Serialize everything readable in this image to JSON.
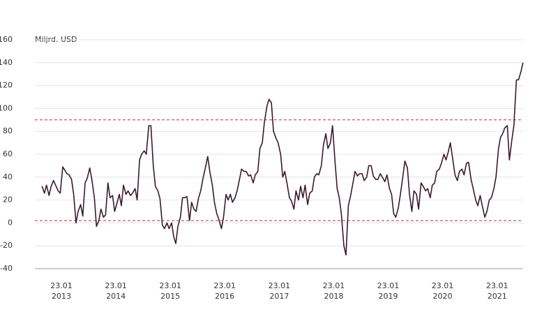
{
  "chart_data": {
    "type": "line",
    "y_label": "Miljrd. USD",
    "xlim": [
      "2012-07-29",
      "2021-07-16"
    ],
    "xticks": [
      {
        "value": "2013-01-23",
        "label": "23.01 2013"
      },
      {
        "value": "2014-01-23",
        "label": "23.01 2014"
      },
      {
        "value": "2015-01-23",
        "label": "23.01 2015"
      },
      {
        "value": "2016-01-23",
        "label": "23.01 2016"
      },
      {
        "value": "2017-01-23",
        "label": "23.01 2017"
      },
      {
        "value": "2018-01-23",
        "label": "23.01 2018"
      },
      {
        "value": "2019-01-23",
        "label": "23.01 2019"
      },
      {
        "value": "2020-01-23",
        "label": "23.01 2020"
      },
      {
        "value": "2021-01-23",
        "label": "23.01 2021"
      }
    ],
    "ylim": [
      -40,
      160
    ],
    "yticks": [
      -40,
      -20,
      0,
      20,
      40,
      60,
      80,
      100,
      120,
      140,
      160
    ],
    "grid": true,
    "hlines": [
      {
        "value": 90,
        "color": "#b03048"
      },
      {
        "value": 2,
        "color": "#b03048"
      }
    ],
    "x": [
      "2012-09-15",
      "2012-10-01",
      "2012-10-15",
      "2012-11-01",
      "2012-11-15",
      "2012-12-01",
      "2012-12-15",
      "2013-01-01",
      "2013-01-15",
      "2013-02-01",
      "2013-02-15",
      "2013-03-01",
      "2013-03-15",
      "2013-04-01",
      "2013-04-15",
      "2013-05-01",
      "2013-05-15",
      "2013-06-01",
      "2013-06-15",
      "2013-07-01",
      "2013-07-15",
      "2013-08-01",
      "2013-08-15",
      "2013-09-01",
      "2013-09-15",
      "2013-10-01",
      "2013-10-15",
      "2013-11-01",
      "2013-11-15",
      "2013-12-01",
      "2013-12-15",
      "2014-01-01",
      "2014-01-15",
      "2014-02-01",
      "2014-02-15",
      "2014-03-01",
      "2014-03-15",
      "2014-04-01",
      "2014-04-15",
      "2014-05-01",
      "2014-05-15",
      "2014-06-01",
      "2014-06-15",
      "2014-07-01",
      "2014-07-15",
      "2014-08-01",
      "2014-08-15",
      "2014-09-01",
      "2014-09-15",
      "2014-10-01",
      "2014-10-15",
      "2014-11-01",
      "2014-11-15",
      "2014-12-01",
      "2014-12-15",
      "2015-01-01",
      "2015-01-15",
      "2015-02-01",
      "2015-02-15",
      "2015-03-01",
      "2015-03-15",
      "2015-04-01",
      "2015-04-15",
      "2015-05-01",
      "2015-05-15",
      "2015-06-01",
      "2015-06-15",
      "2015-07-01",
      "2015-07-15",
      "2015-08-01",
      "2015-08-15",
      "2015-09-01",
      "2015-09-15",
      "2015-10-01",
      "2015-10-15",
      "2015-11-01",
      "2015-11-15",
      "2015-12-01",
      "2015-12-15",
      "2016-01-01",
      "2016-01-15",
      "2016-02-01",
      "2016-02-15",
      "2016-03-01",
      "2016-03-15",
      "2016-04-01",
      "2016-04-15",
      "2016-05-01",
      "2016-05-15",
      "2016-06-01",
      "2016-06-15",
      "2016-07-01",
      "2016-07-15",
      "2016-08-01",
      "2016-08-15",
      "2016-09-01",
      "2016-09-15",
      "2016-10-01",
      "2016-10-15",
      "2016-11-01",
      "2016-11-15",
      "2016-12-01",
      "2016-12-15",
      "2017-01-01",
      "2017-01-15",
      "2017-02-01",
      "2017-02-15",
      "2017-03-01",
      "2017-03-15",
      "2017-04-01",
      "2017-04-15",
      "2017-05-01",
      "2017-05-15",
      "2017-06-01",
      "2017-06-15",
      "2017-07-01",
      "2017-07-15",
      "2017-08-01",
      "2017-08-15",
      "2017-09-01",
      "2017-09-15",
      "2017-10-01",
      "2017-10-15",
      "2017-11-01",
      "2017-11-15",
      "2017-12-01",
      "2017-12-15",
      "2018-01-01",
      "2018-01-15",
      "2018-02-01",
      "2018-02-15",
      "2018-03-01",
      "2018-03-15",
      "2018-04-01",
      "2018-04-15",
      "2018-05-01",
      "2018-05-15",
      "2018-06-01",
      "2018-06-15",
      "2018-07-01",
      "2018-07-15",
      "2018-08-01",
      "2018-08-15",
      "2018-09-01",
      "2018-09-15",
      "2018-10-01",
      "2018-10-15",
      "2018-11-01",
      "2018-11-15",
      "2018-12-01",
      "2018-12-15",
      "2019-01-01",
      "2019-01-15",
      "2019-02-01",
      "2019-02-15",
      "2019-03-01",
      "2019-03-15",
      "2019-04-01",
      "2019-04-15",
      "2019-05-01",
      "2019-05-15",
      "2019-06-01",
      "2019-06-15",
      "2019-07-01",
      "2019-07-15",
      "2019-08-01",
      "2019-08-15",
      "2019-09-01",
      "2019-09-15",
      "2019-10-01",
      "2019-10-15",
      "2019-11-01",
      "2019-11-15",
      "2019-12-01",
      "2019-12-15",
      "2020-01-01",
      "2020-01-15",
      "2020-02-01",
      "2020-02-15",
      "2020-03-01",
      "2020-03-15",
      "2020-04-01",
      "2020-04-15",
      "2020-05-01",
      "2020-05-15",
      "2020-06-01",
      "2020-06-15",
      "2020-07-01",
      "2020-07-15",
      "2020-08-01",
      "2020-08-15",
      "2020-09-01",
      "2020-09-15",
      "2020-10-01",
      "2020-10-15",
      "2020-11-01",
      "2020-11-15",
      "2020-12-01",
      "2020-12-15",
      "2021-01-01",
      "2021-01-15",
      "2021-02-01",
      "2021-02-15",
      "2021-03-01",
      "2021-03-15",
      "2021-04-01",
      "2021-04-15",
      "2021-05-01",
      "2021-05-15",
      "2021-06-01",
      "2021-06-15",
      "2021-07-01",
      "2021-07-15"
    ],
    "series": [
      {
        "color": "#3a1a2e",
        "values": [
          32,
          26,
          33,
          24,
          32,
          37,
          33,
          28,
          26,
          49,
          46,
          43,
          42,
          38,
          25,
          0,
          10,
          16,
          6,
          35,
          39,
          48,
          38,
          22,
          -3,
          2,
          12,
          5,
          7,
          35,
          22,
          24,
          10,
          18,
          25,
          15,
          33,
          25,
          28,
          24,
          26,
          30,
          20,
          55,
          60,
          63,
          60,
          85,
          85,
          50,
          32,
          28,
          21,
          -2,
          -5,
          0,
          -5,
          0,
          -12,
          -18,
          -3,
          5,
          22,
          22,
          23,
          2,
          18,
          12,
          10,
          22,
          28,
          40,
          48,
          58,
          45,
          33,
          18,
          8,
          3,
          -5,
          5,
          25,
          20,
          25,
          18,
          22,
          28,
          38,
          47,
          45,
          45,
          41,
          42,
          35,
          42,
          45,
          65,
          70,
          88,
          102,
          108,
          105,
          80,
          74,
          70,
          60,
          40,
          45,
          35,
          22,
          19,
          12,
          28,
          20,
          32,
          22,
          33,
          16,
          26,
          28,
          40,
          43,
          42,
          50,
          68,
          78,
          65,
          70,
          85,
          53,
          30,
          22,
          8,
          -20,
          -28,
          15,
          23,
          35,
          45,
          41,
          43,
          43,
          37,
          40,
          50,
          50,
          41,
          38,
          38,
          43,
          40,
          36,
          42,
          30,
          25,
          8,
          5,
          13,
          25,
          40,
          54,
          48,
          25,
          10,
          28,
          25,
          12,
          35,
          32,
          28,
          30,
          22,
          33,
          35,
          45,
          47,
          52,
          60,
          55,
          62,
          70,
          55,
          42,
          37,
          45,
          47,
          42,
          52,
          53,
          38,
          30,
          20,
          15,
          24,
          15,
          5,
          10,
          20,
          22,
          30,
          40,
          65,
          75,
          78,
          83,
          85,
          55,
          72,
          85,
          125,
          125,
          132,
          140
        ]
      }
    ]
  }
}
